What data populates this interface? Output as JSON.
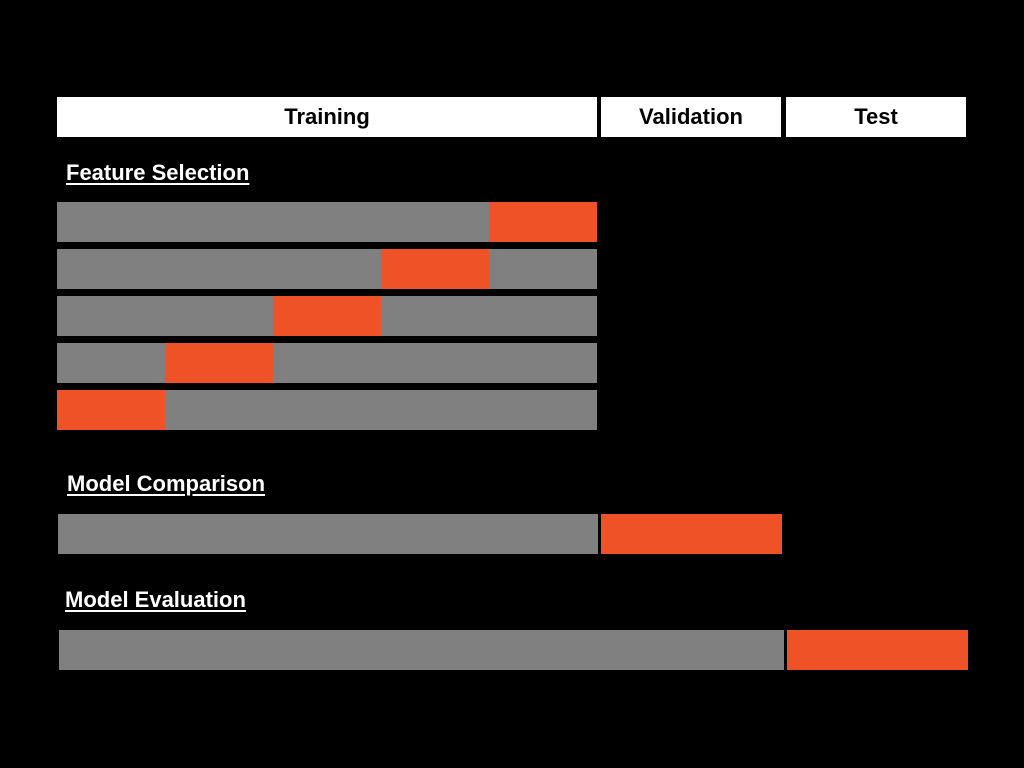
{
  "colors": {
    "background": "#000000",
    "header_bg": "#ffffff",
    "header_text": "#000000",
    "train": "#808080",
    "heldout": "#f05228",
    "title_text": "#ffffff"
  },
  "header": {
    "training_label": "Training",
    "validation_label": "Validation",
    "test_label": "Test"
  },
  "sections": {
    "feature_selection_title": "Feature Selection",
    "model_comparison_title": "Model Comparison",
    "model_evaluation_title": "Model Evaluation"
  },
  "feature_selection": {
    "folds": 5,
    "heldout_fold_per_row": [
      5,
      4,
      3,
      2,
      1
    ]
  },
  "model_comparison": {
    "segments": [
      {
        "role": "train",
        "span": "training"
      },
      {
        "role": "heldout",
        "span": "validation"
      }
    ]
  },
  "model_evaluation": {
    "segments": [
      {
        "role": "train",
        "span": "training+validation"
      },
      {
        "role": "heldout",
        "span": "test"
      }
    ]
  }
}
